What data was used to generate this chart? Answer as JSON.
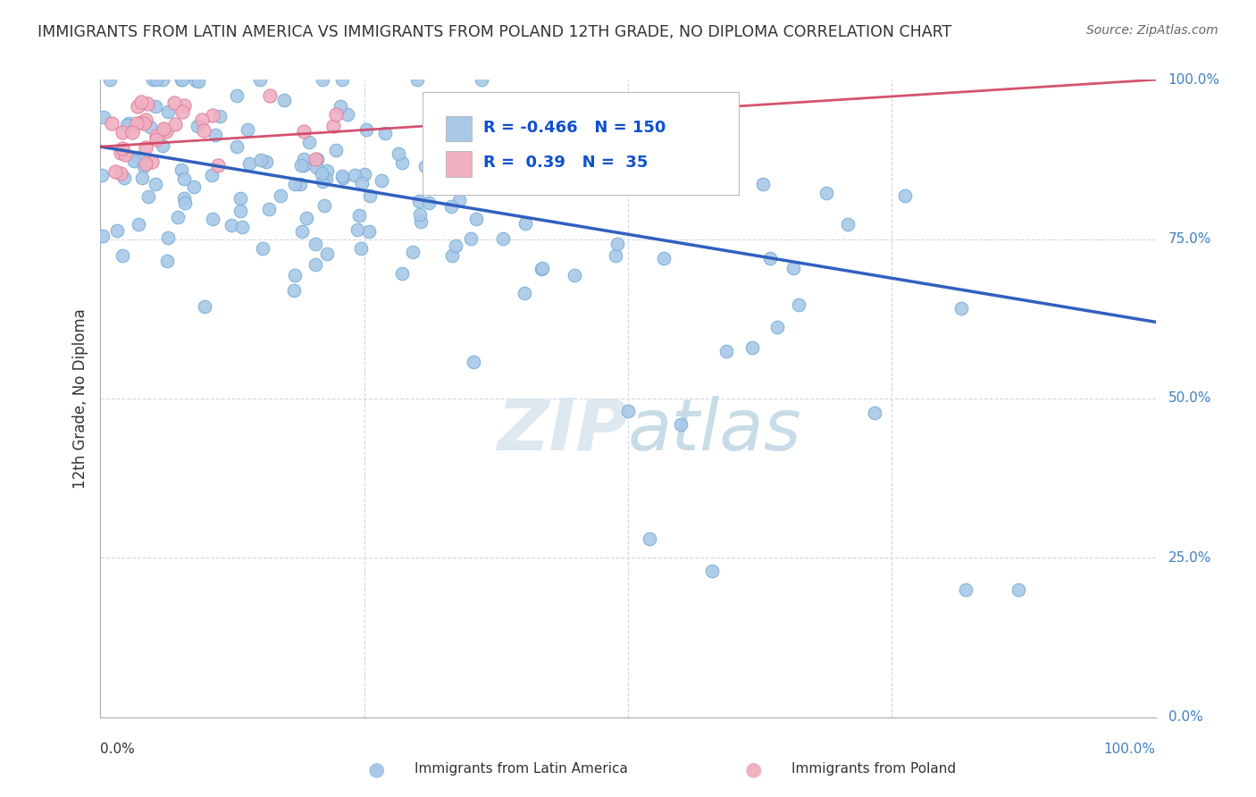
{
  "title": "IMMIGRANTS FROM LATIN AMERICA VS IMMIGRANTS FROM POLAND 12TH GRADE, NO DIPLOMA CORRELATION CHART",
  "source": "Source: ZipAtlas.com",
  "ylabel": "12th Grade, No Diploma",
  "legend_label_blue": "Immigrants from Latin America",
  "legend_label_pink": "Immigrants from Poland",
  "R_blue": -0.466,
  "N_blue": 150,
  "R_pink": 0.39,
  "N_pink": 35,
  "blue_dot_color": "#a8c8e8",
  "blue_edge_color": "#7aafd4",
  "blue_line_color": "#3060c0",
  "pink_dot_color": "#f0b0c0",
  "pink_edge_color": "#e080a0",
  "pink_line_color": "#d04060",
  "watermark_color": "#e8eef5",
  "background_color": "#ffffff",
  "grid_color": "#d0d8e0",
  "text_color": "#333333",
  "axis_label_color": "#4080c0",
  "ylim": [
    0.0,
    1.0
  ],
  "xlim": [
    0.0,
    1.0
  ],
  "y_tick_positions": [
    0.0,
    0.25,
    0.5,
    0.75,
    1.0
  ],
  "y_tick_labels": [
    "0.0%",
    "25.0%",
    "50.0%",
    "75.0%",
    "100.0%"
  ],
  "x_tick_labels_show": [
    "0.0%",
    "100.0%"
  ],
  "blue_line_x0": 0.0,
  "blue_line_y0": 0.895,
  "blue_line_x1": 1.0,
  "blue_line_y1": 0.62,
  "pink_line_x0": 0.0,
  "pink_line_y0": 0.895,
  "pink_line_x1": 1.0,
  "pink_line_y1": 1.0
}
